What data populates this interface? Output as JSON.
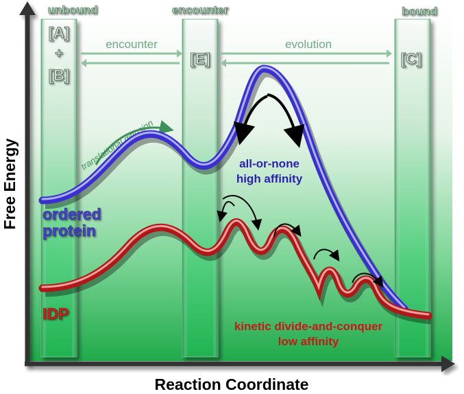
{
  "axes": {
    "x_label": "Reaction Coordinate",
    "y_label": "Free Energy"
  },
  "columns": {
    "unbound": {
      "header": "unbound",
      "species_a": "[A]",
      "plus": "+",
      "species_b": "[B]"
    },
    "encounter": {
      "header": "encounter",
      "species": "[E]"
    },
    "bound": {
      "header": "bound",
      "species": "[C]"
    }
  },
  "transitions": {
    "encounter_label": "encounter",
    "evolution_label": "evolution",
    "diffusion_label": "translational diffusion"
  },
  "curves": {
    "ordered": {
      "label_line1": "ordered",
      "label_line2": "protein",
      "annotation_line1": "all-or-none",
      "annotation_line2": "high affinity",
      "color": "#4a3fd0"
    },
    "idp": {
      "label": "IDP",
      "annotation_line1": "kinetic divide-and-conquer",
      "annotation_line2": "low affinity",
      "color": "#b01818"
    }
  },
  "colors": {
    "background_green": "#2fbf5c",
    "column_green": "#3fce6e",
    "column_label": "#c8e6cc",
    "arrow_green": "#3e8f5c"
  }
}
